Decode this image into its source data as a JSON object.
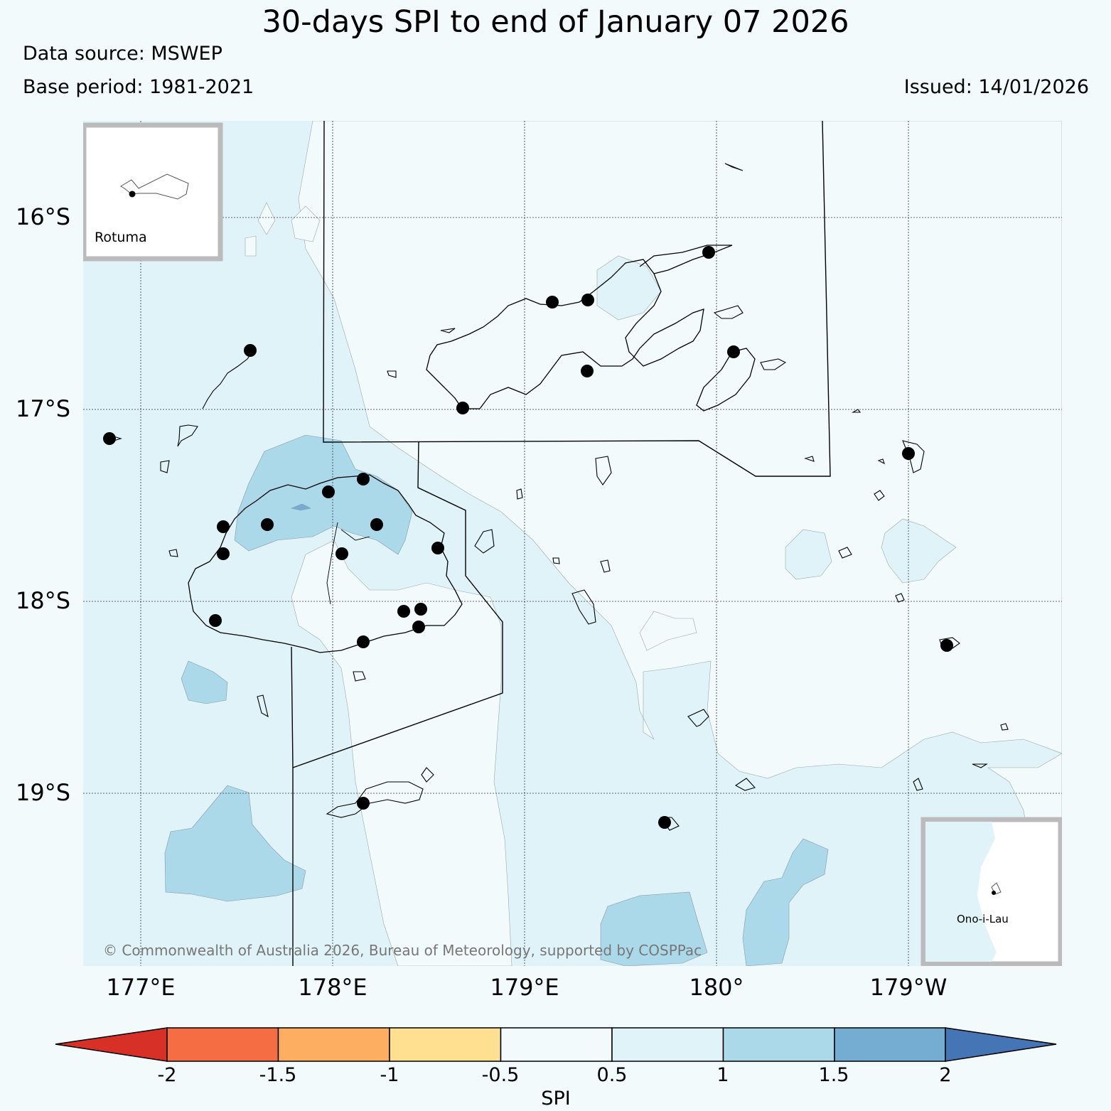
{
  "header": {
    "title": "30-days SPI to end of January 07 2026",
    "data_source": "Data source: MSWEP",
    "base_period": "Base period: 1981-2021",
    "issued": "Issued: 14/01/2026"
  },
  "map": {
    "lat_labels": [
      "16°S",
      "17°S",
      "18°S",
      "19°S"
    ],
    "lon_labels": [
      "177°E",
      "178°E",
      "179°E",
      "180°",
      "179°W"
    ],
    "copyright": "© Commonwealth of Australia 2026, Bureau of Meteorology, supported by COSPPac",
    "insets": [
      {
        "label": "Rotuma"
      },
      {
        "label": "Ono-i-Lau"
      }
    ]
  },
  "legend": {
    "label": "SPI",
    "ticks": [
      "-2",
      "-1.5",
      "-1",
      "-0.5",
      "0.5",
      "1",
      "1.5",
      "2"
    ],
    "colors": [
      "#d73027",
      "#f46d43",
      "#fdae61",
      "#fee090",
      "#f2fafc",
      "#e0f3f8",
      "#abd9e9",
      "#74add1",
      "#4575b4"
    ]
  }
}
